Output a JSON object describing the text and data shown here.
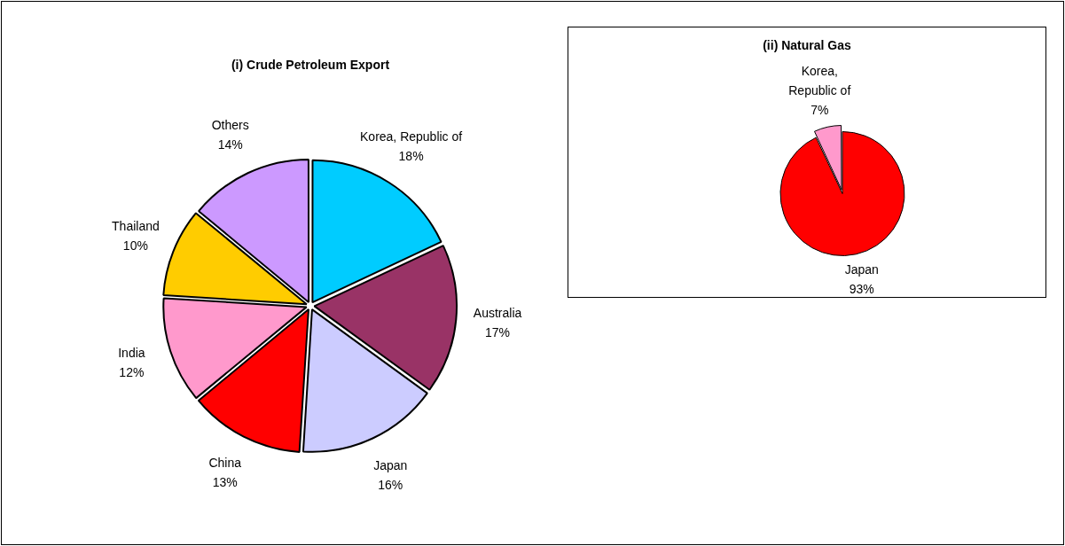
{
  "chart_data": [
    {
      "type": "pie",
      "title": "(i) Crude Petroleum Export",
      "categories": [
        "Korea, Republic of",
        "Australia",
        "Japan",
        "China",
        "India",
        "Thailand",
        "Others"
      ],
      "values": [
        18,
        17,
        16,
        13,
        12,
        10,
        14
      ],
      "colors": [
        "#00ccff",
        "#993366",
        "#ccccff",
        "#ff0000",
        "#ff99cc",
        "#ffcc00",
        "#cc99ff"
      ],
      "value_labels": [
        "18%",
        "17%",
        "16%",
        "13%",
        "12%",
        "10%",
        "14%"
      ]
    },
    {
      "type": "pie",
      "title": "(ii) Natural Gas",
      "categories": [
        "Japan",
        "Korea, Republic of"
      ],
      "values": [
        93,
        7
      ],
      "colors": [
        "#ff0000",
        "#ff99cc"
      ],
      "value_labels": [
        "93%",
        "7%"
      ]
    }
  ]
}
